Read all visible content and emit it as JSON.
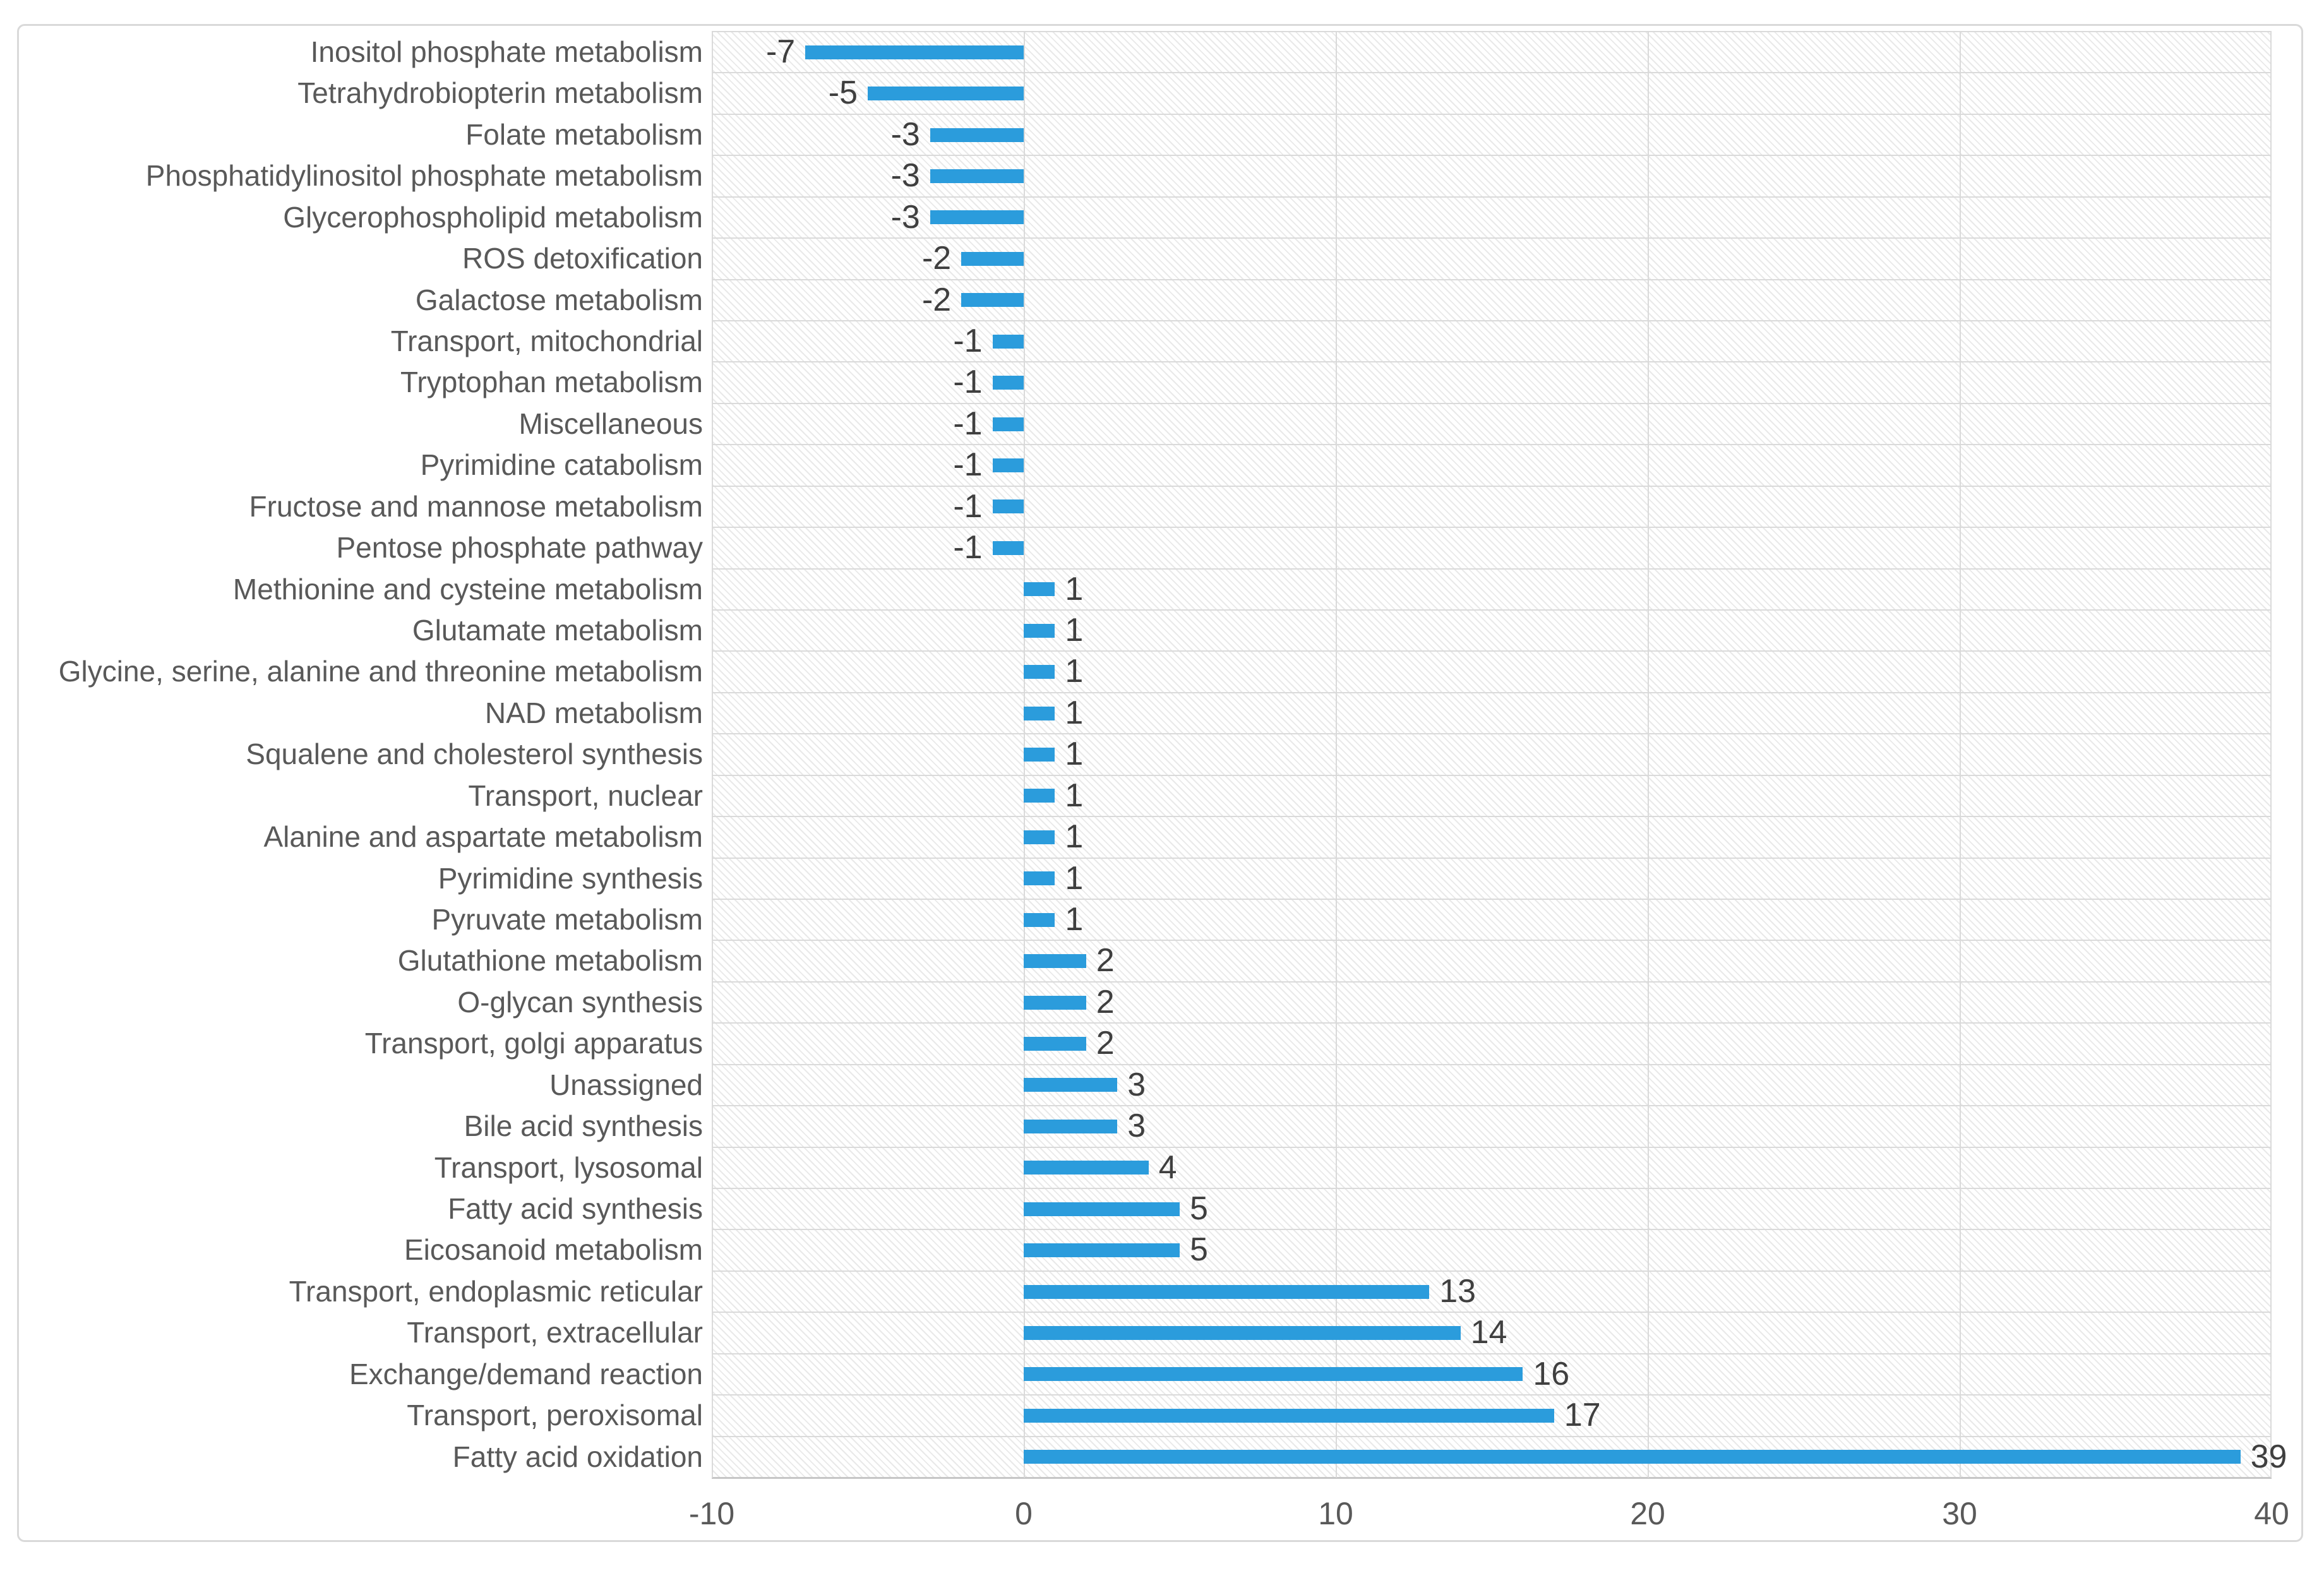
{
  "chart_data": {
    "type": "bar",
    "orientation": "horizontal",
    "title": "",
    "xlabel": "",
    "ylabel": "",
    "legend": false,
    "grid": true,
    "xlim": [
      -10,
      40
    ],
    "x_ticks": [
      -10,
      0,
      10,
      20,
      30,
      40
    ],
    "categories": [
      "Inositol phosphate metabolism",
      "Tetrahydrobiopterin metabolism",
      "Folate metabolism",
      "Phosphatidylinositol phosphate metabolism",
      "Glycerophospholipid metabolism",
      "ROS detoxification",
      "Galactose metabolism",
      "Transport, mitochondrial",
      "Tryptophan metabolism",
      "Miscellaneous",
      "Pyrimidine catabolism",
      "Fructose and mannose metabolism",
      "Pentose phosphate pathway",
      "Methionine and cysteine metabolism",
      "Glutamate metabolism",
      "Glycine, serine, alanine and threonine metabolism",
      "NAD metabolism",
      "Squalene and cholesterol synthesis",
      "Transport, nuclear",
      "Alanine and aspartate metabolism",
      "Pyrimidine synthesis",
      "Pyruvate metabolism",
      "Glutathione metabolism",
      "O-glycan synthesis",
      "Transport, golgi apparatus",
      "Unassigned",
      "Bile acid synthesis",
      "Transport, lysosomal",
      "Fatty acid synthesis",
      "Eicosanoid metabolism",
      "Transport, endoplasmic reticular",
      "Transport, extracellular",
      "Exchange/demand reaction",
      "Transport, peroxisomal",
      "Fatty acid oxidation"
    ],
    "values": [
      -7,
      -5,
      -3,
      -3,
      -3,
      -2,
      -2,
      -1,
      -1,
      -1,
      -1,
      -1,
      -1,
      1,
      1,
      1,
      1,
      1,
      1,
      1,
      1,
      1,
      2,
      2,
      2,
      3,
      3,
      4,
      5,
      5,
      13,
      14,
      16,
      17,
      39
    ],
    "bar_color": "#2B9CDC",
    "colors": {
      "grid": "#DADADA",
      "axis_line": "#C6C6C6",
      "category_label": "#595959",
      "value_label": "#3F3F3F",
      "tick_label": "#595959",
      "hatch": "#E9E9E9",
      "frame_border": "#D9D9D9",
      "background": "#FFFFFF"
    }
  }
}
